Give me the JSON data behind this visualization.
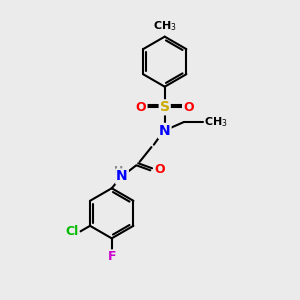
{
  "bg_color": "#ebebeb",
  "bond_color": "#000000",
  "bond_width": 1.5,
  "atom_colors": {
    "N": "#0000ff",
    "O": "#ff0000",
    "S": "#ccaa00",
    "Cl": "#00bb00",
    "F": "#cc00cc",
    "C": "#000000",
    "H": "#888888"
  },
  "font_size": 9,
  "small_font_size": 8
}
